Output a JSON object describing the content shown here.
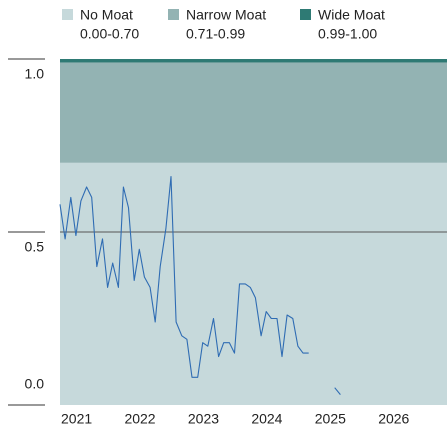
{
  "chart_data": {
    "type": "line",
    "bands": [
      {
        "name": "No Moat",
        "label": "0.00-0.70",
        "from": 0,
        "to": 0.7,
        "color": "#c6d9db"
      },
      {
        "name": "Narrow Moat",
        "label": "0.71-0.99",
        "from": 0.7,
        "to": 0.99,
        "color": "#93b3b3"
      },
      {
        "name": "Wide Moat",
        "label": "0.99-1.00",
        "from": 0.99,
        "to": 1.0,
        "color": "#2e7a74"
      }
    ],
    "x": [
      2021,
      2021.08,
      2021.17,
      2021.25,
      2021.33,
      2021.42,
      2021.5,
      2021.58,
      2021.67,
      2021.75,
      2021.83,
      2021.92,
      2022,
      2022.08,
      2022.17,
      2022.25,
      2022.33,
      2022.42,
      2022.5,
      2022.58,
      2022.67,
      2022.75,
      2022.83,
      2022.92,
      2023,
      2023.08,
      2023.17,
      2023.25,
      2023.33,
      2023.42,
      2023.5,
      2023.58,
      2023.67,
      2023.75,
      2023.83,
      2023.92,
      2024,
      2024.08,
      2024.17,
      2024.25,
      2024.33,
      2024.42,
      2024.5,
      2024.58,
      2024.67,
      2024.75,
      2024.83,
      2024.92,
      2025,
      2025.08,
      2025.17,
      2025.25,
      2025.33,
      2025.42
    ],
    "series": [
      {
        "color": "#2f6cb3",
        "values": [
          0.58,
          0.48,
          0.6,
          0.49,
          0.59,
          0.63,
          0.6,
          0.4,
          0.48,
          0.34,
          0.41,
          0.34,
          0.63,
          0.57,
          0.36,
          0.45,
          0.37,
          0.34,
          0.24,
          0.4,
          0.51,
          0.66,
          0.24,
          0.2,
          0.19,
          0.08,
          0.08,
          0.18,
          0.17,
          0.25,
          0.14,
          0.18,
          0.18,
          0.15,
          0.35,
          0.35,
          0.34,
          0.31,
          0.2,
          0.27,
          0.25,
          0.25,
          0.14,
          0.26,
          0.25,
          0.17,
          0.15,
          0.15,
          null,
          null,
          null,
          null,
          0.05,
          0.03
        ]
      }
    ],
    "xlim": [
      2021,
      2027.1
    ],
    "xticks": [
      2021,
      2022,
      2023,
      2024,
      2025,
      2026
    ],
    "ylim": [
      0,
      1
    ],
    "yticks": [
      {
        "value": 0,
        "label": "0.0"
      },
      {
        "value": 0.5,
        "label": "0.5"
      },
      {
        "value": 1,
        "label": "1.0"
      }
    ],
    "grid": true
  }
}
